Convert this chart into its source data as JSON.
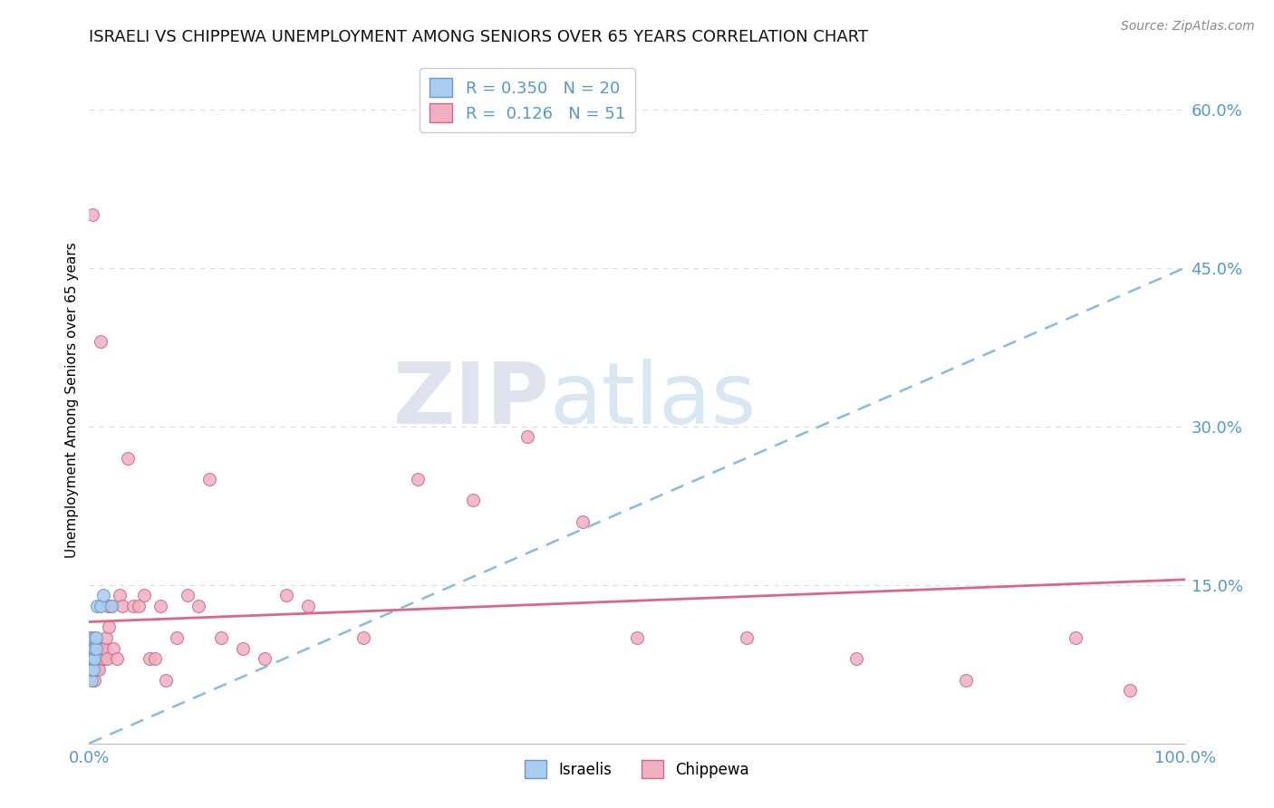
{
  "title": "ISRAELI VS CHIPPEWA UNEMPLOYMENT AMONG SENIORS OVER 65 YEARS CORRELATION CHART",
  "source": "Source: ZipAtlas.com",
  "ylabel": "Unemployment Among Seniors over 65 years",
  "watermark_zip": "ZIP",
  "watermark_atlas": "atlas",
  "legend_israelis_R": "0.350",
  "legend_israelis_N": "20",
  "legend_chippewa_R": "0.126",
  "legend_chippewa_N": "51",
  "israelis_x": [
    0.001,
    0.001,
    0.002,
    0.002,
    0.002,
    0.003,
    0.003,
    0.003,
    0.004,
    0.004,
    0.004,
    0.005,
    0.005,
    0.005,
    0.006,
    0.006,
    0.007,
    0.01,
    0.013,
    0.02
  ],
  "israelis_y": [
    0.08,
    0.09,
    0.06,
    0.07,
    0.1,
    0.07,
    0.08,
    0.09,
    0.07,
    0.08,
    0.09,
    0.08,
    0.09,
    0.1,
    0.09,
    0.1,
    0.13,
    0.13,
    0.14,
    0.13
  ],
  "chippewa_x": [
    0.001,
    0.002,
    0.003,
    0.004,
    0.005,
    0.006,
    0.007,
    0.008,
    0.009,
    0.01,
    0.011,
    0.012,
    0.013,
    0.014,
    0.015,
    0.016,
    0.017,
    0.018,
    0.02,
    0.022,
    0.025,
    0.028,
    0.03,
    0.035,
    0.04,
    0.045,
    0.05,
    0.055,
    0.06,
    0.065,
    0.07,
    0.08,
    0.09,
    0.1,
    0.11,
    0.12,
    0.14,
    0.16,
    0.18,
    0.2,
    0.25,
    0.3,
    0.35,
    0.4,
    0.45,
    0.5,
    0.6,
    0.7,
    0.8,
    0.9,
    0.95
  ],
  "chippewa_y": [
    0.1,
    0.09,
    0.5,
    0.08,
    0.06,
    0.08,
    0.07,
    0.09,
    0.07,
    0.38,
    0.08,
    0.09,
    0.08,
    0.09,
    0.1,
    0.08,
    0.13,
    0.11,
    0.13,
    0.09,
    0.08,
    0.14,
    0.13,
    0.27,
    0.13,
    0.13,
    0.14,
    0.08,
    0.08,
    0.13,
    0.06,
    0.1,
    0.14,
    0.13,
    0.25,
    0.1,
    0.09,
    0.08,
    0.14,
    0.13,
    0.1,
    0.25,
    0.23,
    0.29,
    0.21,
    0.1,
    0.1,
    0.08,
    0.06,
    0.1,
    0.05
  ],
  "israeli_color": "#aaccee",
  "chippewa_color": "#f0b0c0",
  "israeli_edge_color": "#6699cc",
  "chippewa_edge_color": "#cc6688",
  "trend_israeli_color": "#88bbdd",
  "trend_chippewa_color": "#dd6688",
  "background_color": "#ffffff",
  "grid_color": "#dddddd",
  "title_fontsize": 13,
  "marker_size": 100,
  "xlim": [
    0,
    1.0
  ],
  "ylim": [
    0.0,
    0.65
  ],
  "ylabel_tick_vals": [
    0.15,
    0.3,
    0.45,
    0.6
  ],
  "trend_israeli_x0": 0.0,
  "trend_israeli_y0": 0.0,
  "trend_israeli_x1": 1.0,
  "trend_israeli_y1": 0.45,
  "trend_chippewa_x0": 0.0,
  "trend_chippewa_y0": 0.115,
  "trend_chippewa_x1": 1.0,
  "trend_chippewa_y1": 0.155
}
